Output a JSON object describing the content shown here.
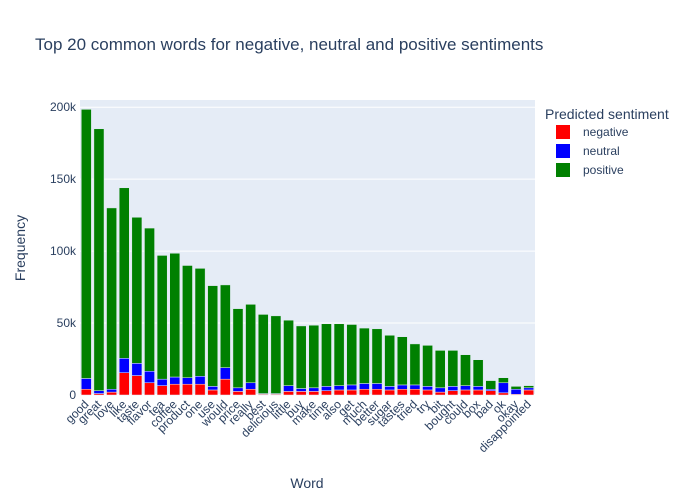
{
  "chart_data": {
    "type": "bar",
    "stacked": true,
    "title": "Top 20 common words for negative, neutral and positive sentiments",
    "xlabel": "Word",
    "ylabel": "Frequency",
    "ylim": [
      0,
      205000
    ],
    "yticks": [
      {
        "value": 0,
        "label": "0"
      },
      {
        "value": 50000,
        "label": "50k"
      },
      {
        "value": 100000,
        "label": "100k"
      },
      {
        "value": 150000,
        "label": "150k"
      },
      {
        "value": 200000,
        "label": "200k"
      }
    ],
    "grid": true,
    "legend_title": "Predicted sentiment",
    "legend_position": "top-right",
    "categories": [
      "good",
      "great",
      "love",
      "like",
      "taste",
      "flavor",
      "tea",
      "coffee",
      "product",
      "one",
      "use",
      "would",
      "price",
      "really",
      "best",
      "delicious",
      "little",
      "buy",
      "make",
      "time",
      "also",
      "get",
      "much",
      "better",
      "sugar",
      "tastes",
      "tried",
      "try",
      "bit",
      "bought",
      "could",
      "box",
      "bad",
      "ok",
      "okay",
      "disappointed"
    ],
    "series": [
      {
        "name": "negative",
        "color": "#ff0000",
        "values": [
          4000,
          1000,
          2000,
          15500,
          13500,
          8500,
          6500,
          7500,
          7500,
          7500,
          3500,
          11000,
          2500,
          4000,
          500,
          500,
          2500,
          2500,
          2500,
          3000,
          3500,
          3500,
          4000,
          4000,
          3500,
          4000,
          4000,
          3500,
          2000,
          3000,
          3500,
          3500,
          3000,
          1500,
          500,
          3500
        ]
      },
      {
        "name": "neutral",
        "color": "#0000ff",
        "values": [
          7500,
          2000,
          2000,
          10000,
          8500,
          8000,
          4500,
          5000,
          4500,
          5500,
          2500,
          8000,
          2500,
          4500,
          500,
          500,
          4000,
          2000,
          2500,
          3000,
          3000,
          3500,
          4000,
          4000,
          2500,
          3000,
          3000,
          2500,
          3000,
          3000,
          3000,
          2500,
          1000,
          7000,
          3500,
          1500
        ]
      },
      {
        "name": "positive",
        "color": "#008000",
        "values": [
          187000,
          182000,
          126000,
          118500,
          101500,
          99500,
          86000,
          86000,
          78000,
          75000,
          70000,
          57500,
          55000,
          54500,
          55000,
          54000,
          45500,
          43500,
          43500,
          43500,
          43000,
          42000,
          38500,
          38000,
          35500,
          33500,
          28500,
          28500,
          26000,
          25000,
          21500,
          18500,
          6000,
          3500,
          2000,
          1500
        ]
      }
    ]
  }
}
